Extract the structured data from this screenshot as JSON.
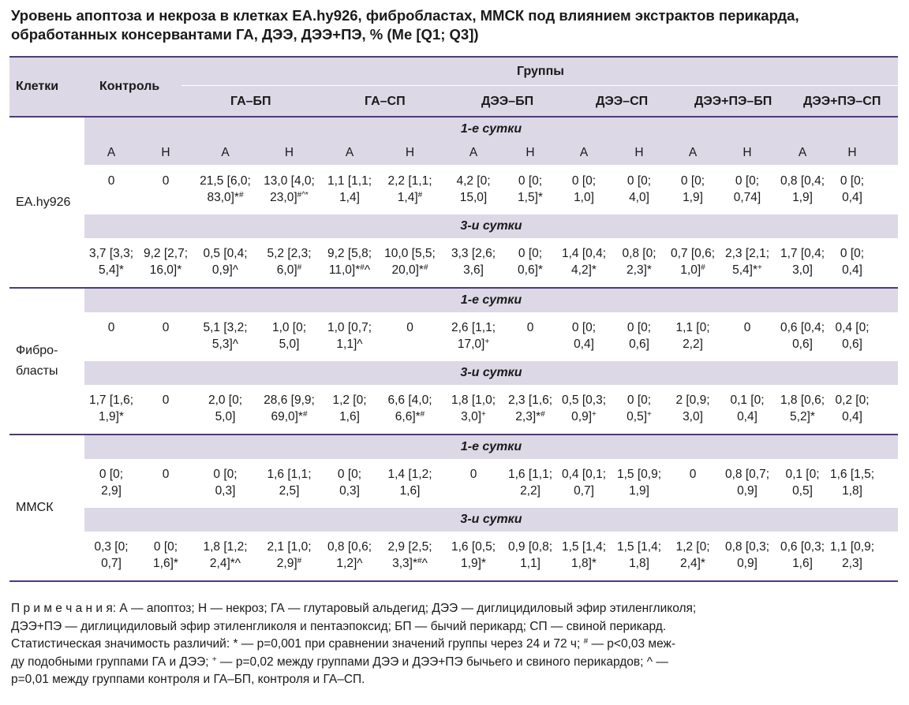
{
  "title": {
    "line1": "Уровень апоптоза и некроза в клетках EA.hy926, фибробластах, ММСК под влиянием экстрактов перикарда,",
    "line2": "обработанных консервантами ГА, ДЭЭ, ДЭЭ+ПЭ, % (Me [Q1; Q3])"
  },
  "header": {
    "cells": "Клетки",
    "control": "Контроль",
    "groups": "Группы",
    "group_names": [
      "ГА–БП",
      "ГА–СП",
      "ДЭЭ–БП",
      "ДЭЭ–СП",
      "ДЭЭ+ПЭ–БП",
      "ДЭЭ+ПЭ–СП"
    ]
  },
  "subheaders": [
    "А",
    "Н",
    "А",
    "Н",
    "А",
    "Н",
    "А",
    "Н",
    "А",
    "Н",
    "А",
    "Н",
    "А",
    "Н"
  ],
  "periods": {
    "day1": "1-е сутки",
    "day3": "3-и сутки"
  },
  "sections": [
    {
      "name": "EA.hy926",
      "day1": [
        "0",
        "0",
        "21,5 [6,0;<br>83,0]*<sup>#</sup>",
        "13,0 [4,0;<br>23,0]<sup>#^*</sup>",
        "1,1 [1,1;<br>1,4]",
        "2,2 [1,1;<br>1,4]<sup>#</sup>",
        "4,2 [0;<br>15,0]",
        "0 [0;<br>1,5]*",
        "0 [0;<br>1,0]",
        "0 [0;<br>4,0]",
        "0 [0;<br>1,9]",
        "0 [0;<br>0,74]",
        "0,8 [0,4;<br>1,9]",
        "0 [0;<br>0,4]"
      ],
      "day3": [
        "3,7 [3,3;<br>5,4]*",
        "9,2 [2,7;<br>16,0]*",
        "0,5 [0,4;<br>0,9]^",
        "5,2 [2,3;<br>6,0]<sup>#</sup>",
        "9,2 [5,8;<br>11,0]*<sup>#</sup>^",
        "10,0 [5,5;<br>20,0]*<sup>#</sup>",
        "3,3 [2,6;<br>3,6]",
        "0 [0;<br>0,6]*",
        "1,4 [0,4;<br>4,2]*",
        "0,8 [0;<br>2,3]*",
        "0,7 [0,6;<br>1,0]<sup>#</sup>",
        "2,3 [2,1;<br>5,4]*<sup>+</sup>",
        "1,7 [0,4;<br>3,0]",
        "0 [0;<br>0,4]"
      ]
    },
    {
      "name": "Фибро-<br>бласты",
      "day1": [
        "0",
        "0",
        "5,1 [3,2;<br>5,3]^",
        "1,0 [0;<br>5,0]",
        "1,0 [0,7;<br>1,1]^",
        "0",
        "2,6 [1,1;<br>17,0]<sup>+</sup>",
        "0",
        "0 [0;<br>0,4]",
        "0 [0;<br>0,6]",
        "1,1 [0;<br>2,2]",
        "0",
        "0,6 [0,4;<br>0,6]",
        "0,4 [0;<br>0,6]"
      ],
      "day3": [
        "1,7 [1,6;<br>1,9]*",
        "0",
        "2,0 [0;<br>5,0]",
        "28,6 [9,9;<br>69,0]*<sup>#</sup>",
        "1,2 [0;<br>1,6]",
        "6,6 [4,0;<br>6,6]*<sup>#</sup>",
        "1,8 [1,0;<br>3,0]<sup>+</sup>",
        "2,3 [1,6;<br>2,3]*<sup>#</sup>",
        "0,5 [0,3;<br>0,9]<sup>+</sup>",
        "0 [0;<br>0,5]<sup>+</sup>",
        "2 [0,9;<br>3,0]",
        "0,1 [0;<br>0,4]",
        "1,8 [0,6;<br>5,2]*",
        "0,2 [0;<br>0,4]"
      ]
    },
    {
      "name": "ММСК",
      "day1": [
        "0 [0;<br>2,9]",
        "0",
        "0 [0;<br>0,3]",
        "1,6 [1,1;<br>2,5]",
        "0 [0;<br>0,3]",
        "1,4 [1,2;<br>1,6]",
        "0",
        "1,6 [1,1;<br>2,2]",
        "0,4 [0,1;<br>0,7]",
        "1,5 [0,9;<br>1,9]",
        "0",
        "0,8 [0,7;<br>0,9]",
        "0,1 [0;<br>0,5]",
        "1,6 [1,5;<br>1,8]"
      ],
      "day3": [
        "0,3 [0;<br>0,7]",
        "0 [0;<br>1,6]*",
        "1,8 [1,2;<br>2,4]*^",
        "2,1 [1,0;<br>2,9]<sup>#</sup>",
        "0,8 [0,6;<br>1,2]^",
        "2,9 [2,5;<br>3,3]*<sup>#</sup>^",
        "1,6 [0,5;<br>1,9]*",
        "0,9 [0,8;<br>1,1]",
        "1,5 [1,4;<br>1,8]*",
        "1,5 [1,4;<br>1,8]",
        "1,2 [0;<br>2,4]*",
        "0,8 [0,3;<br>0,9]",
        "0,6 [0,3;<br>1,6]",
        "1,1 [0,9;<br>2,3]"
      ]
    }
  ],
  "notes": {
    "line1": "П р и м е ч а н и я: А — апоптоз; Н — некроз; ГА — глутаровый альдегид; ДЭЭ — диглицидиловый эфир этиленгликоля;",
    "line2": "ДЭЭ+ПЭ — диглицидиловый эфир этиленгликоля и пентаэпоксид; БП — бычий перикард; СП — свиной перикард.",
    "line3": "Статистическая значимость различий: * — p=0,001 при сравнении значений группы через 24 и 72 ч; <sup>#</sup> — p&lt;0,03 меж-",
    "line4": "ду подобными группами ГА и ДЭЭ; <sup>+</sup> — p=0,02 между группами ДЭЭ и ДЭЭ+ПЭ бычьего и свиного перикардов; ^ —",
    "line5": "p=0,01 между группами контроля и ГА–БП, контроля и ГА–СП."
  },
  "colors": {
    "rule": "#4f3a7e",
    "band": "#dcd8e6"
  }
}
